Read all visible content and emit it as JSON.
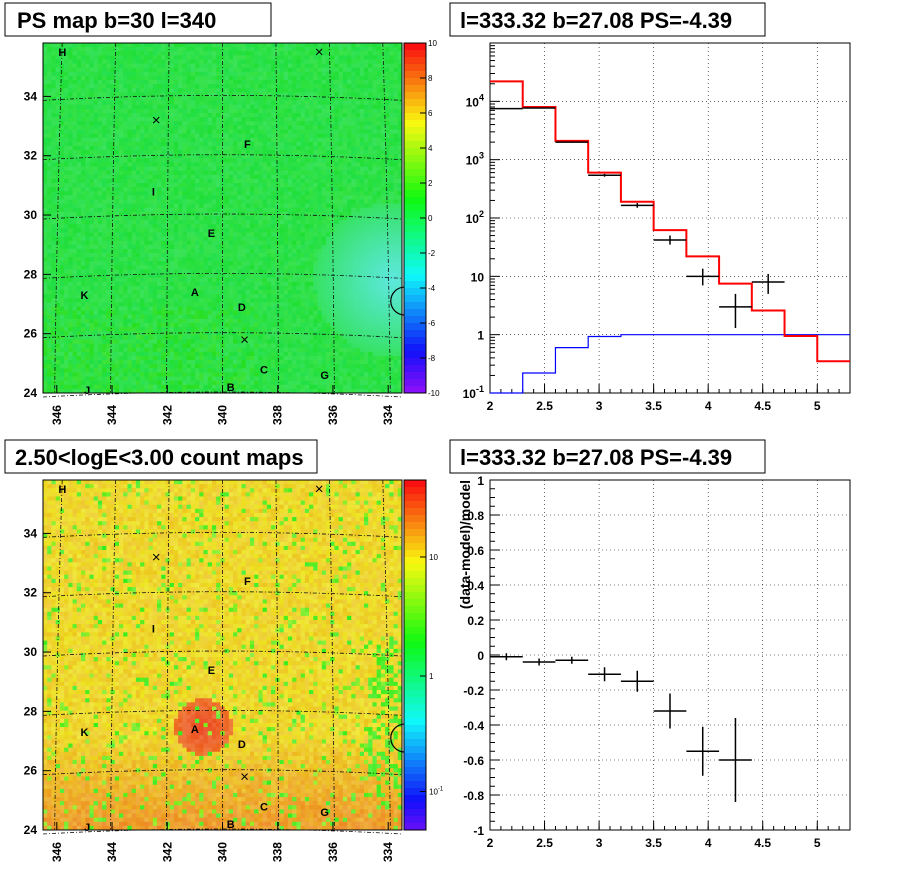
{
  "panels": {
    "top_left_title": "PS map b=30 l=340",
    "top_right_title": "l=333.32 b=27.08 PS=-4.39",
    "bottom_left_title": "2.50<logE<3.00 count maps",
    "bottom_right_title": "l=333.32 b=27.08 PS=-4.39"
  },
  "colors": {
    "model_line": "#ff0000",
    "background_line": "#0000ff",
    "data_points": "#000000",
    "ps_map_base": "#27e84a",
    "count_map_base": "#f2dc2a"
  },
  "chart_data": [
    {
      "type": "heatmap",
      "name": "ps_map",
      "x_ticks": [
        "346",
        "344",
        "342",
        "340",
        "338",
        "336",
        "334"
      ],
      "y_ticks": [
        "24",
        "26",
        "28",
        "30",
        "32",
        "34"
      ],
      "xlim": [
        346.5,
        333.5
      ],
      "ylim": [
        24,
        35.8
      ],
      "colorbar": {
        "ticks": [
          "10",
          "8",
          "6",
          "4",
          "2",
          "0",
          "-2",
          "-4",
          "-6",
          "-8",
          "-10"
        ],
        "range": [
          -10,
          10
        ]
      },
      "source_labels": [
        {
          "text": "H",
          "l": 345.8,
          "b": 35.5
        },
        {
          "text": "F",
          "l": 339.1,
          "b": 32.4
        },
        {
          "text": "I",
          "l": 342.5,
          "b": 30.8
        },
        {
          "text": "E",
          "l": 340.4,
          "b": 29.4
        },
        {
          "text": "K",
          "l": 345.0,
          "b": 27.3
        },
        {
          "text": "A",
          "l": 341.0,
          "b": 27.4
        },
        {
          "text": "D",
          "l": 339.3,
          "b": 26.9
        },
        {
          "text": "C",
          "l": 338.5,
          "b": 24.8
        },
        {
          "text": "B",
          "l": 339.7,
          "b": 24.2
        },
        {
          "text": "G",
          "l": 336.3,
          "b": 24.6
        },
        {
          "text": "J",
          "l": 344.9,
          "b": 24.1
        }
      ],
      "x_markers": [
        {
          "l": 336.5,
          "b": 35.5
        },
        {
          "l": 342.4,
          "b": 33.2
        },
        {
          "l": 339.2,
          "b": 25.8
        }
      ],
      "circle": {
        "l": 333.4,
        "b": 27.1
      }
    },
    {
      "type": "line",
      "name": "spectrum",
      "title": "l=333.32 b=27.08 PS=-4.39",
      "xlim": [
        2,
        5.3
      ],
      "ylim": [
        0.1,
        100000
      ],
      "y_scale": "log",
      "x_ticks": [
        "2",
        "2.5",
        "3",
        "3.5",
        "4",
        "4.5",
        "5"
      ],
      "y_ticks": [
        "10^-1",
        "1",
        "10",
        "10^2",
        "10^3",
        "10^4"
      ],
      "model_steps": {
        "edges": [
          2.0,
          2.3,
          2.6,
          2.9,
          3.2,
          3.5,
          3.8,
          4.1,
          4.4,
          4.7,
          5.0,
          5.3
        ],
        "values": [
          22000,
          8000,
          2100,
          600,
          190,
          62,
          22,
          7.5,
          2.6,
          0.95,
          0.35
        ]
      },
      "background_steps": {
        "edges": [
          2.0,
          2.3,
          2.6,
          2.9,
          3.2,
          3.5,
          5.3
        ],
        "values": [
          0.06,
          0.22,
          0.6,
          0.93,
          1.0,
          1.0
        ]
      },
      "data_points": [
        {
          "x": 2.15,
          "y": 7500,
          "xerr": 0.15,
          "ylo": 7400,
          "yhi": 7600
        },
        {
          "x": 2.45,
          "y": 7700,
          "xerr": 0.15,
          "ylo": 7600,
          "yhi": 7800
        },
        {
          "x": 2.75,
          "y": 2000,
          "xerr": 0.15,
          "ylo": 1950,
          "yhi": 2050
        },
        {
          "x": 3.05,
          "y": 540,
          "xerr": 0.15,
          "ylo": 510,
          "yhi": 570
        },
        {
          "x": 3.35,
          "y": 165,
          "xerr": 0.15,
          "ylo": 150,
          "yhi": 180
        },
        {
          "x": 3.65,
          "y": 42,
          "xerr": 0.15,
          "ylo": 35,
          "yhi": 50
        },
        {
          "x": 3.95,
          "y": 10,
          "xerr": 0.15,
          "ylo": 7,
          "yhi": 13.5
        },
        {
          "x": 4.25,
          "y": 3,
          "xerr": 0.15,
          "ylo": 1.3,
          "yhi": 5
        },
        {
          "x": 4.55,
          "y": 8,
          "xerr": 0.15,
          "ylo": 5,
          "yhi": 11
        }
      ]
    },
    {
      "type": "heatmap",
      "name": "count_map",
      "x_ticks": [
        "346",
        "344",
        "342",
        "340",
        "338",
        "336",
        "334"
      ],
      "y_ticks": [
        "24",
        "26",
        "28",
        "30",
        "32",
        "34"
      ],
      "xlim": [
        346.5,
        333.5
      ],
      "ylim": [
        24,
        35.8
      ],
      "colorbar": {
        "ticks": [
          "10",
          "1",
          "10^-1"
        ],
        "scale": "log"
      },
      "source_labels": [
        {
          "text": "H",
          "l": 345.8,
          "b": 35.5
        },
        {
          "text": "F",
          "l": 339.1,
          "b": 32.4
        },
        {
          "text": "I",
          "l": 342.5,
          "b": 30.8
        },
        {
          "text": "E",
          "l": 340.4,
          "b": 29.4
        },
        {
          "text": "K",
          "l": 345.0,
          "b": 27.3
        },
        {
          "text": "A",
          "l": 341.0,
          "b": 27.4
        },
        {
          "text": "D",
          "l": 339.3,
          "b": 26.9
        },
        {
          "text": "C",
          "l": 338.5,
          "b": 24.8
        },
        {
          "text": "B",
          "l": 339.7,
          "b": 24.2
        },
        {
          "text": "G",
          "l": 336.3,
          "b": 24.6
        },
        {
          "text": "J",
          "l": 344.9,
          "b": 24.1
        }
      ],
      "x_markers": [
        {
          "l": 336.5,
          "b": 35.5
        },
        {
          "l": 342.4,
          "b": 33.2
        },
        {
          "l": 339.2,
          "b": 25.8
        }
      ],
      "circle": {
        "l": 333.4,
        "b": 27.1
      }
    },
    {
      "type": "scatter",
      "name": "residuals",
      "title": "l=333.32 b=27.08 PS=-4.39",
      "ylabel": "(data-model)/model",
      "xlim": [
        2,
        5.3
      ],
      "ylim": [
        -1,
        1
      ],
      "x_ticks": [
        "2",
        "2.5",
        "3",
        "3.5",
        "4",
        "4.5",
        "5"
      ],
      "y_ticks": [
        "1",
        "0.8",
        "0.6",
        "0.4",
        "0.2",
        "0",
        "-0.2",
        "-0.4",
        "-0.6",
        "-0.8",
        "-1"
      ],
      "points": [
        {
          "x": 2.15,
          "y": -0.01,
          "xerr": 0.15,
          "yerr": 0.02
        },
        {
          "x": 2.45,
          "y": -0.04,
          "xerr": 0.15,
          "yerr": 0.02
        },
        {
          "x": 2.75,
          "y": -0.03,
          "xerr": 0.15,
          "yerr": 0.02
        },
        {
          "x": 3.05,
          "y": -0.11,
          "xerr": 0.15,
          "yerr": 0.04
        },
        {
          "x": 3.35,
          "y": -0.15,
          "xerr": 0.15,
          "yerr": 0.06
        },
        {
          "x": 3.65,
          "y": -0.32,
          "xerr": 0.15,
          "yerr": 0.1
        },
        {
          "x": 3.95,
          "y": -0.55,
          "xerr": 0.15,
          "yerr": 0.14
        },
        {
          "x": 4.25,
          "y": -0.6,
          "xerr": 0.15,
          "yerr": 0.24
        }
      ]
    }
  ]
}
